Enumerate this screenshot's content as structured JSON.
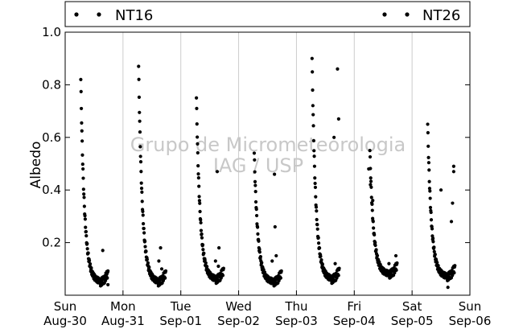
{
  "chart_data": {
    "type": "scatter",
    "title": "",
    "xlabel": "",
    "ylabel": "Albedo",
    "ylim": [
      0.0,
      1.0
    ],
    "yticks": [
      0.2,
      0.4,
      0.6,
      0.8,
      1.0
    ],
    "xticks": [
      {
        "day": "Sun",
        "date": "Aug-30"
      },
      {
        "day": "Mon",
        "date": "Aug-31"
      },
      {
        "day": "Tue",
        "date": "Sep-01"
      },
      {
        "day": "Wed",
        "date": "Sep-02"
      },
      {
        "day": "Thu",
        "date": "Sep-03"
      },
      {
        "day": "Fri",
        "date": "Sep-04"
      },
      {
        "day": "Sat",
        "date": "Sep-05"
      },
      {
        "day": "Sun",
        "date": "Sep-06"
      }
    ],
    "xlim": [
      "Aug-30",
      "Sep-06"
    ],
    "grid": "vertical",
    "legend": {
      "placement": "top",
      "entries": [
        "NT16",
        "NT26"
      ]
    },
    "watermark": [
      "Grupo de Micrometeorologia",
      "IAG / USP"
    ],
    "colors": {
      "points": "#000000",
      "grid": "#cccccc",
      "watermark": "#c8c8c8"
    },
    "series": [
      {
        "name": "NT16",
        "days": [
          {
            "date": "Aug-30",
            "peak": 0.82,
            "min": 0.05,
            "extra": [
              [
                0.65,
                0.17
              ],
              [
                0.72,
                0.08
              ],
              [
                0.74,
                0.04
              ]
            ]
          },
          {
            "date": "Aug-31",
            "peak": 0.87,
            "min": 0.05,
            "extra": [
              [
                0.65,
                0.18
              ],
              [
                0.62,
                0.13
              ],
              [
                0.67,
                0.1
              ]
            ]
          },
          {
            "date": "Sep-01",
            "peak": 0.75,
            "min": 0.06,
            "extra": [
              [
                0.63,
                0.47
              ],
              [
                0.66,
                0.18
              ],
              [
                0.6,
                0.13
              ],
              [
                0.65,
                0.11
              ]
            ]
          },
          {
            "date": "Sep-02",
            "peak": 0.54,
            "min": 0.05,
            "extra": [
              [
                0.62,
                0.46
              ],
              [
                0.63,
                0.26
              ],
              [
                0.65,
                0.15
              ],
              [
                0.58,
                0.13
              ]
            ]
          },
          {
            "date": "Sep-03",
            "peak": 0.9,
            "min": 0.06,
            "extra": [
              [
                0.65,
                0.6
              ],
              [
                0.71,
                0.86
              ],
              [
                0.73,
                0.67
              ],
              [
                0.67,
                0.12
              ],
              [
                0.72,
                0.1
              ]
            ]
          },
          {
            "date": "Sep-04",
            "peak": 0.55,
            "min": 0.08,
            "extra": [
              [
                0.25,
                0.48
              ],
              [
                0.28,
                0.42
              ],
              [
                0.32,
                0.36
              ],
              [
                0.72,
                0.15
              ],
              [
                0.6,
                0.12
              ]
            ]
          },
          {
            "date": "Sep-05",
            "peak": 0.65,
            "min": 0.07,
            "extra": [
              [
                0.5,
                0.4
              ],
              [
                0.72,
                0.49
              ],
              [
                0.72,
                0.47
              ],
              [
                0.7,
                0.35
              ],
              [
                0.68,
                0.28
              ],
              [
                0.62,
                0.03
              ]
            ]
          }
        ]
      },
      {
        "name": "NT26",
        "days": []
      }
    ]
  }
}
